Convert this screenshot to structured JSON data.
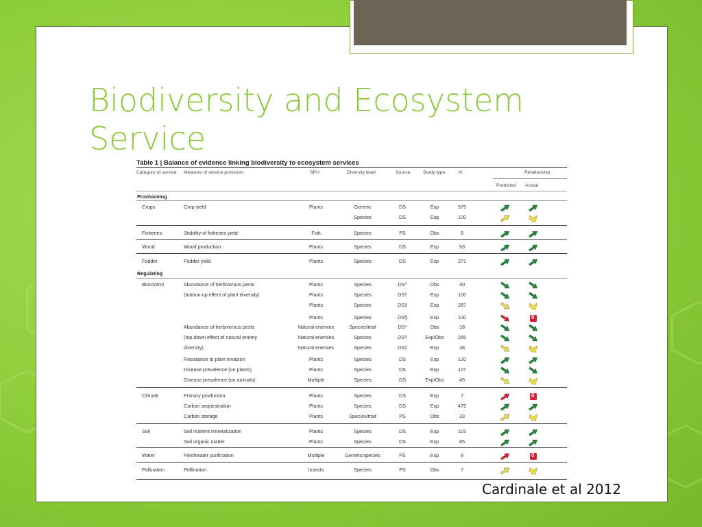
{
  "slide": {
    "title": "Biodiversity and Ecosystem Service",
    "citation": "Cardinale et al 2012"
  },
  "colors": {
    "accent": "#8cc63e",
    "tab": "#6e6456",
    "positive": "#1f8a3c",
    "neutral": "#f3e24a",
    "negative": "#d6202f"
  },
  "table": {
    "caption": "Table 1 | Balance of evidence linking biodiversity to ecosystem services",
    "headers": {
      "category": "Category of service",
      "measure": "Measure of service provision",
      "spu": "SPU",
      "diversity": "Diversity level",
      "source": "Source",
      "study": "Study type",
      "n": "N",
      "relationship": "Relationship",
      "predicted": "Predicted",
      "actual": "Actual"
    },
    "sections": {
      "provisioning": "Provisioning",
      "regulating": "Regulating"
    },
    "rows": [
      {
        "cat": "Crops",
        "measure": "Crop yield",
        "spu": "Plants",
        "div": "Genetic",
        "src": "DS",
        "study": "Exp",
        "n": "575",
        "pred": "up",
        "act": "up"
      },
      {
        "cat": "",
        "measure": "",
        "spu": "",
        "div": "Species",
        "src": "DS",
        "study": "Exp",
        "n": "100",
        "pred": "mixed-up",
        "act": "mixed"
      },
      {
        "cat": "Fisheries",
        "measure": "Stability of fisheries yield",
        "spu": "Fish",
        "div": "Species",
        "src": "PS",
        "study": "Obs",
        "n": "8",
        "pred": "up",
        "act": "up"
      },
      {
        "cat": "Wood",
        "measure": "Wood production",
        "spu": "Plants",
        "div": "Species",
        "src": "DS",
        "study": "Exp",
        "n": "53",
        "pred": "up",
        "act": "up"
      },
      {
        "cat": "Fodder",
        "measure": "Fodder yield",
        "spu": "Plants",
        "div": "Species",
        "src": "DS",
        "study": "Exp",
        "n": "271",
        "pred": "up",
        "act": "up"
      },
      {
        "cat": "Biocontrol",
        "measure": "Abundance of herbivorous pests",
        "spu": "Plants",
        "div": "Species",
        "src": "DS*",
        "study": "Obs",
        "n": "40",
        "pred": "down",
        "act": "down"
      },
      {
        "cat": "",
        "measure": "(bottom-up effect of plant diversity)",
        "spu": "Plants",
        "div": "Species",
        "src": "DS†",
        "study": "Exp",
        "n": "100",
        "pred": "down",
        "act": "down"
      },
      {
        "cat": "",
        "measure": "",
        "spu": "Plants",
        "div": "Species",
        "src": "DS‡",
        "study": "Exp",
        "n": "287",
        "pred": "mixed-down",
        "act": "mixed"
      },
      {
        "cat": "",
        "measure": "",
        "spu": "Plants",
        "div": "Species",
        "src": "DS§",
        "study": "Exp",
        "n": "100",
        "pred": "neg-down",
        "act": "zero"
      },
      {
        "cat": "",
        "measure": "Abundance of herbivorous pests",
        "spu": "Natural enemies",
        "div": "Species/trait",
        "src": "DS*",
        "study": "Obs",
        "n": "18",
        "pred": "down",
        "act": "down"
      },
      {
        "cat": "",
        "measure": "(top-down effect of natural enemy",
        "spu": "Natural enemies",
        "div": "Species",
        "src": "DS†",
        "study": "Exp/Obs",
        "n": "266",
        "pred": "down",
        "act": "down"
      },
      {
        "cat": "",
        "measure": "diversity)",
        "spu": "Natural enemies",
        "div": "Species",
        "src": "DS‡",
        "study": "Exp",
        "n": "38",
        "pred": "mixed-down",
        "act": "mixed"
      },
      {
        "cat": "",
        "measure": "Resistance to plant invasion",
        "spu": "Plants",
        "div": "Species",
        "src": "DS",
        "study": "Exp",
        "n": "120",
        "pred": "up",
        "act": "up"
      },
      {
        "cat": "",
        "measure": "Disease prevalence (on plants)",
        "spu": "Plants",
        "div": "Species",
        "src": "DS",
        "study": "Exp",
        "n": "107",
        "pred": "down",
        "act": "down"
      },
      {
        "cat": "",
        "measure": "Disease prevalence (on animals)",
        "spu": "Multiple",
        "div": "Species",
        "src": "DS",
        "study": "Exp/Obs",
        "n": "45",
        "pred": "mixed-down",
        "act": "mixed"
      },
      {
        "cat": "Climate",
        "measure": "Primary production",
        "spu": "Plants",
        "div": "Species",
        "src": "DS",
        "study": "Exp",
        "n": "7",
        "pred": "neg-up",
        "act": "zero"
      },
      {
        "cat": "",
        "measure": "Carbon sequestration",
        "spu": "Plants",
        "div": "Species",
        "src": "DS",
        "study": "Exp",
        "n": "479",
        "pred": "up",
        "act": "up"
      },
      {
        "cat": "",
        "measure": "Carbon storage",
        "spu": "Plants",
        "div": "Species/trait",
        "src": "PS",
        "study": "Obs",
        "n": "33",
        "pred": "mixed-up",
        "act": "mixed"
      },
      {
        "cat": "Soil",
        "measure": "Soil nutrient mineralization",
        "spu": "Plants",
        "div": "Species",
        "src": "DS",
        "study": "Exp",
        "n": "103",
        "pred": "up",
        "act": "up"
      },
      {
        "cat": "",
        "measure": "Soil organic matter",
        "spu": "Plants",
        "div": "Species",
        "src": "DS",
        "study": "Exp",
        "n": "85",
        "pred": "up",
        "act": "up"
      },
      {
        "cat": "Water",
        "measure": "Freshwater purification",
        "spu": "Multiple",
        "div": "Genetic/species",
        "src": "PS",
        "study": "Exp",
        "n": "8",
        "pred": "neg-up",
        "act": "zero"
      },
      {
        "cat": "Pollination",
        "measure": "Pollination",
        "spu": "Insects",
        "div": "Species",
        "src": "PS",
        "study": "Obs",
        "n": "7",
        "pred": "mixed-up",
        "act": "mixed"
      }
    ],
    "zero_label": "0"
  }
}
